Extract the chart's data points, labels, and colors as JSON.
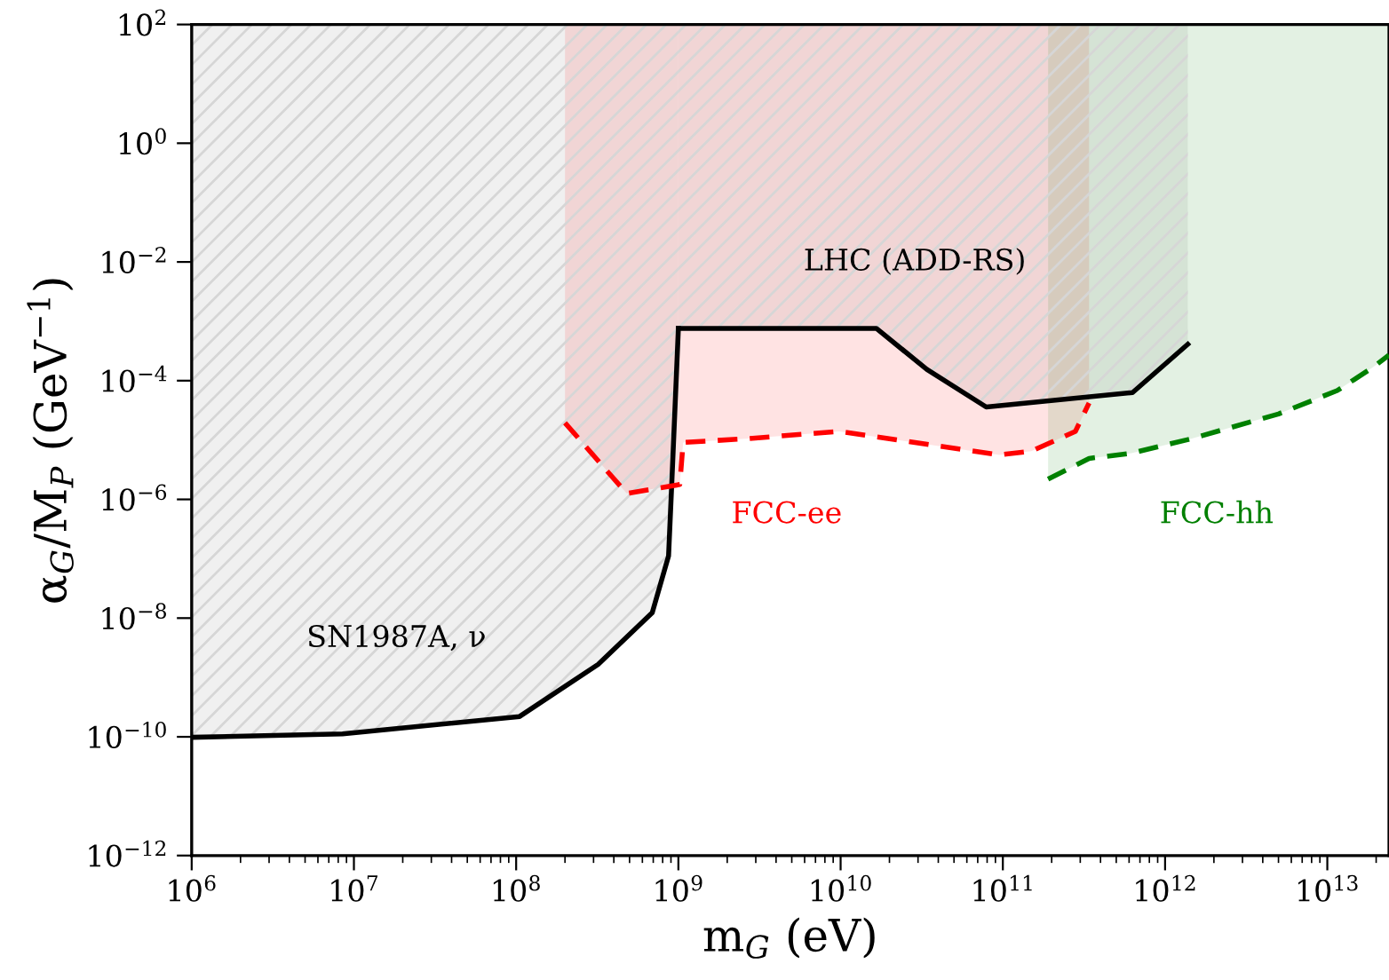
{
  "chart_data": {
    "type": "line",
    "xlabel": "m$_{G}$ (eV)",
    "ylabel": "α$_{G}$/M$_{P}$ (GeV$^{−1}$)",
    "log": "xy",
    "xlim": [
      1000000.0,
      24000000000000.0
    ],
    "ylim": [
      1e-12,
      100
    ],
    "xticks": [
      {
        "value": 1000000.0,
        "label": "10$^{6}$"
      },
      {
        "value": 10000000.0,
        "label": "10$^{7}$"
      },
      {
        "value": 100000000.0,
        "label": "10$^{8}$"
      },
      {
        "value": 1000000000.0,
        "label": "10$^{9}$"
      },
      {
        "value": 10000000000.0,
        "label": "10$^{10}$"
      },
      {
        "value": 100000000000.0,
        "label": "10$^{11}$"
      },
      {
        "value": 1000000000000.0,
        "label": "10$^{12}$"
      },
      {
        "value": 10000000000000.0,
        "label": "10$^{13}$"
      }
    ],
    "yticks": [
      {
        "value": 1e-12,
        "label": "10$^{−12}$"
      },
      {
        "value": 1e-10,
        "label": "10$^{−10}$"
      },
      {
        "value": 1e-08,
        "label": "10$^{−8}$"
      },
      {
        "value": 1e-06,
        "label": "10$^{−6}$"
      },
      {
        "value": 0.0001,
        "label": "10$^{−4}$"
      },
      {
        "value": 0.01,
        "label": "10$^{−2}$"
      },
      {
        "value": 1,
        "label": "10$^{0}$"
      },
      {
        "value": 100,
        "label": "10$^{2}$"
      }
    ],
    "series": [
      {
        "name": "SN1987A, ν",
        "color": "#000000",
        "line_style": "solid",
        "x": [
          1000000.0,
          8500000.0,
          105000000.0,
          320000000.0,
          690000000.0,
          870000000.0,
          910000000.0,
          1000000000.0
        ],
        "values": [
          9.8e-11,
          1.12e-10,
          2.2e-10,
          1.66e-09,
          1.23e-08,
          1.12e-07,
          1.8e-06,
          0.00076
        ]
      },
      {
        "name": "LHC (ADD-RS)",
        "color": "#000000",
        "line_style": "solid",
        "x": [
          1000000000.0,
          16600000000.0,
          34000000000.0,
          79000000000.0,
          630000000000.0,
          1380000000000.0
        ],
        "values": [
          0.00076,
          0.00076,
          0.000155,
          3.6e-05,
          6.3e-05,
          0.00041
        ]
      },
      {
        "name": "FCC-ee",
        "color": "#ff0000",
        "line_style": "dashed",
        "x": [
          200000000.0,
          480000000.0,
          1020000000.0,
          1070000000.0,
          2600000000.0,
          9800000000.0,
          95000000000.0,
          150000000000.0,
          280000000000.0,
          340000000000.0
        ],
        "values": [
          1.95e-05,
          1.26e-06,
          1.78e-06,
          9.1e-06,
          1.05e-05,
          1.4e-05,
          5.6e-06,
          6.5e-06,
          1.4e-05,
          4.2e-05
        ]
      },
      {
        "name": "FCC-hh",
        "color": "#008000",
        "line_style": "dashed",
        "x": [
          190000000000.0,
          340000000000.0,
          620000000000.0,
          1450000000000.0,
          5000000000000.0,
          11500000000000.0,
          19000000000000.0,
          24000000000000.0
        ],
        "values": [
          2.2e-06,
          4.9e-06,
          6e-06,
          1.05e-05,
          2.75e-05,
          6.8e-05,
          0.000166,
          0.00027
        ]
      }
    ]
  }
}
